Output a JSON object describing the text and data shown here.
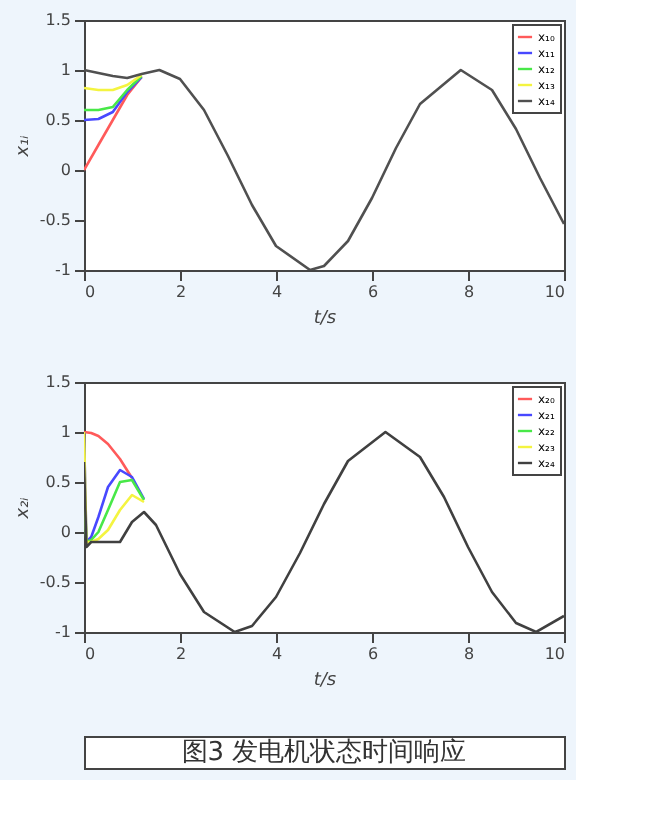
{
  "chart_data": [
    {
      "type": "line",
      "xlabel": "t/s",
      "ylabel": "x₁ᵢ",
      "xlim": [
        0,
        10
      ],
      "ylim": [
        -1,
        1.5
      ],
      "xticks": [
        0,
        2,
        4,
        6,
        8,
        10
      ],
      "yticks": [
        -1,
        -0.5,
        0,
        0.5,
        1,
        1.5
      ],
      "grid": false,
      "legend": "top right",
      "series": [
        {
          "name": "x₁₀",
          "color": "#ff5a5a",
          "x": [
            0,
            0.3,
            0.6,
            0.9,
            1.2
          ],
          "values": [
            0,
            0.25,
            0.5,
            0.75,
            0.93
          ]
        },
        {
          "name": "x₁₁",
          "color": "#4848ff",
          "x": [
            0,
            0.3,
            0.6,
            0.9,
            1.2
          ],
          "values": [
            0.5,
            0.51,
            0.58,
            0.78,
            0.93
          ]
        },
        {
          "name": "x₁₂",
          "color": "#48e848",
          "x": [
            0,
            0.3,
            0.6,
            0.9,
            1.2
          ],
          "values": [
            0.6,
            0.6,
            0.63,
            0.8,
            0.94
          ]
        },
        {
          "name": "x₁₃",
          "color": "#f4f440",
          "x": [
            0,
            0.3,
            0.6,
            0.9,
            1.2
          ],
          "values": [
            0.82,
            0.8,
            0.8,
            0.85,
            0.95
          ]
        },
        {
          "name": "x₁₄",
          "color": "#505050",
          "x": [
            0,
            0.3,
            0.6,
            0.9,
            1.2,
            1.57,
            2,
            2.5,
            3,
            3.5,
            4,
            4.71,
            5,
            5.5,
            6,
            6.5,
            7,
            7.85,
            8.5,
            9,
            9.5,
            10
          ],
          "values": [
            1,
            0.97,
            0.94,
            0.92,
            0.96,
            1,
            0.91,
            0.6,
            0.14,
            -0.35,
            -0.76,
            -1,
            -0.96,
            -0.71,
            -0.28,
            0.22,
            0.66,
            1,
            0.8,
            0.41,
            -0.08,
            -0.54
          ]
        }
      ]
    },
    {
      "type": "line",
      "xlabel": "t/s",
      "ylabel": "x₂ᵢ",
      "xlim": [
        0,
        10
      ],
      "ylim": [
        -1,
        1.5
      ],
      "xticks": [
        0,
        2,
        4,
        6,
        8,
        10
      ],
      "yticks": [
        -1,
        -0.5,
        0,
        0.5,
        1,
        1.5
      ],
      "grid": false,
      "legend": "top right",
      "annotations": [
        "图3 发电机状态时间响应"
      ],
      "series": [
        {
          "name": "x₂₀",
          "color": "#ff5a5a",
          "x": [
            0,
            0.15,
            0.3,
            0.5,
            0.75,
            1
          ],
          "values": [
            1,
            0.99,
            0.96,
            0.88,
            0.73,
            0.54
          ]
        },
        {
          "name": "x₂₁",
          "color": "#4848ff",
          "x": [
            0,
            0.05,
            0.15,
            0.3,
            0.5,
            0.75,
            1,
            1.25
          ],
          "values": [
            1,
            -0.1,
            -0.05,
            0.15,
            0.45,
            0.62,
            0.55,
            0.33
          ]
        },
        {
          "name": "x₂₂",
          "color": "#48e848",
          "x": [
            0,
            0.05,
            0.15,
            0.3,
            0.5,
            0.75,
            1,
            1.25
          ],
          "values": [
            0.55,
            -0.1,
            -0.08,
            0,
            0.22,
            0.5,
            0.52,
            0.32
          ]
        },
        {
          "name": "x₂₃",
          "color": "#f4f440",
          "x": [
            0,
            0.05,
            0.15,
            0.3,
            0.5,
            0.75,
            1,
            1.25
          ],
          "values": [
            1,
            -0.1,
            -0.1,
            -0.07,
            0.02,
            0.22,
            0.37,
            0.3
          ]
        },
        {
          "name": "x₂₄",
          "color": "#404040",
          "x": [
            0,
            0.05,
            0.15,
            0.3,
            0.5,
            0.75,
            1,
            1.25,
            1.5,
            2,
            2.5,
            3.14,
            3.5,
            4,
            4.5,
            5,
            5.5,
            6.28,
            7,
            7.5,
            8,
            8.5,
            9,
            9.42,
            10
          ],
          "values": [
            0.7,
            -0.15,
            -0.1,
            -0.1,
            -0.1,
            -0.1,
            0.1,
            0.2,
            0.07,
            -0.42,
            -0.8,
            -1,
            -0.94,
            -0.65,
            -0.21,
            0.28,
            0.71,
            1,
            0.75,
            0.35,
            -0.15,
            -0.6,
            -0.91,
            -1,
            -0.84
          ]
        }
      ]
    }
  ]
}
